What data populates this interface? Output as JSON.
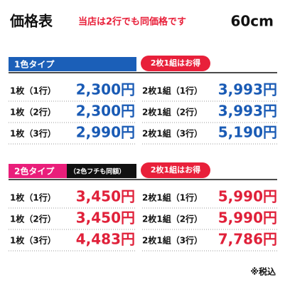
{
  "header": {
    "title": "価格表",
    "note": "当店は2行でも同価格です",
    "size": "60cm"
  },
  "sections": [
    {
      "label": "1色タイプ",
      "badge": "2枚1組はお得",
      "rows": [
        {
          "single": "1枚（1行）",
          "single_price": "2,300円",
          "pair": "2枚1組（1行）",
          "pair_price": "3,993円"
        },
        {
          "single": "1枚（2行）",
          "single_price": "2,300円",
          "pair": "2枚1組（2行）",
          "pair_price": "3,993円"
        },
        {
          "single": "1枚（3行）",
          "single_price": "2,990円",
          "pair": "2枚1組（3行）",
          "pair_price": "5,190円"
        }
      ]
    },
    {
      "label": "2色タイプ",
      "sublabel": "（2色フチも同額）",
      "badge": "2枚1組はお得",
      "rows": [
        {
          "single": "1枚（1行）",
          "single_price": "3,450円",
          "pair": "2枚1組（1行）",
          "pair_price": "5,990円"
        },
        {
          "single": "1枚（2行）",
          "single_price": "3,450円",
          "pair": "2枚1組（2行）",
          "pair_price": "5,990円"
        },
        {
          "single": "1枚（3行）",
          "single_price": "4,483円",
          "pair": "2枚1組（3行）",
          "pair_price": "7,786円"
        }
      ]
    }
  ],
  "footer": {
    "note": "※税込"
  }
}
